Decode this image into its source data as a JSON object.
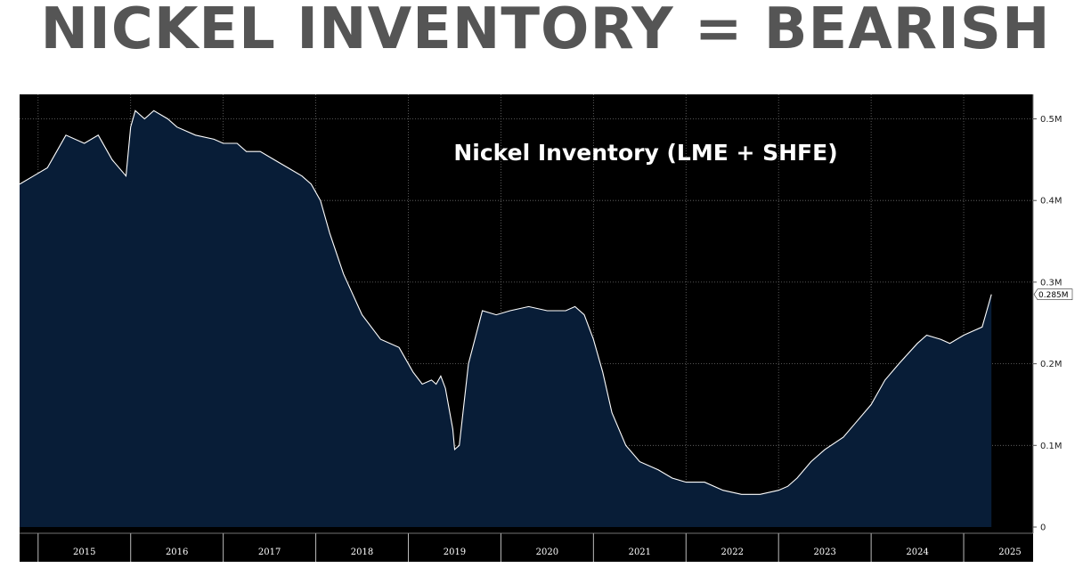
{
  "headline": "NICKEL INVENTORY = BEARISH",
  "colors": {
    "background": "#000000",
    "area_fill": "#081d37",
    "line": "#ffffff",
    "headline": "#555555"
  },
  "chart_data": {
    "type": "area",
    "title": "Nickel Inventory (LME + SHFE)",
    "xlabel": "",
    "ylabel": "",
    "x_range": [
      2014.8,
      2025.75
    ],
    "ylim": [
      0,
      0.53
    ],
    "y_unit": "M",
    "y_ticks": [
      0,
      0.1,
      0.2,
      0.3,
      0.4,
      0.5
    ],
    "y_tick_labels": [
      "0",
      "0.1M",
      "0.2M",
      "0.3M",
      "0.4M",
      "0.5M"
    ],
    "x_tick_labels": [
      "2015",
      "2016",
      "2017",
      "2018",
      "2019",
      "2020",
      "2021",
      "2022",
      "2023",
      "2024",
      "2025"
    ],
    "grid": true,
    "last_value_label": "0.285M",
    "series": [
      {
        "x": [
          2014.8,
          2014.95,
          2015.1,
          2015.2,
          2015.3,
          2015.5,
          2015.65,
          2015.8,
          2015.95,
          2016.0,
          2016.05,
          2016.15,
          2016.25,
          2016.4,
          2016.5,
          2016.7,
          2016.9,
          2017.0,
          2017.15,
          2017.25,
          2017.4,
          2017.55,
          2017.7,
          2017.85,
          2017.95,
          2018.05,
          2018.15,
          2018.3,
          2018.5,
          2018.7,
          2018.9,
          2019.05,
          2019.15,
          2019.25,
          2019.3,
          2019.35,
          2019.4,
          2019.48,
          2019.5,
          2019.55,
          2019.65,
          2019.8,
          2019.95,
          2020.1,
          2020.3,
          2020.5,
          2020.7,
          2020.8,
          2020.9,
          2021.0,
          2021.1,
          2021.2,
          2021.35,
          2021.5,
          2021.7,
          2021.85,
          2022.0,
          2022.2,
          2022.4,
          2022.6,
          2022.8,
          2023.0,
          2023.1,
          2023.2,
          2023.35,
          2023.5,
          2023.7,
          2023.85,
          2024.0,
          2024.15,
          2024.3,
          2024.5,
          2024.6,
          2024.75,
          2024.85,
          2025.0,
          2025.1,
          2025.2,
          2025.25,
          2025.3
        ],
        "y": [
          0.42,
          0.43,
          0.44,
          0.46,
          0.48,
          0.47,
          0.48,
          0.45,
          0.43,
          0.49,
          0.51,
          0.5,
          0.51,
          0.5,
          0.49,
          0.48,
          0.475,
          0.47,
          0.47,
          0.46,
          0.46,
          0.45,
          0.44,
          0.43,
          0.42,
          0.4,
          0.36,
          0.31,
          0.26,
          0.23,
          0.22,
          0.19,
          0.175,
          0.18,
          0.175,
          0.185,
          0.17,
          0.12,
          0.095,
          0.1,
          0.2,
          0.265,
          0.26,
          0.265,
          0.27,
          0.265,
          0.265,
          0.27,
          0.26,
          0.23,
          0.19,
          0.14,
          0.1,
          0.08,
          0.07,
          0.06,
          0.055,
          0.055,
          0.045,
          0.04,
          0.04,
          0.045,
          0.05,
          0.06,
          0.08,
          0.095,
          0.11,
          0.13,
          0.15,
          0.18,
          0.2,
          0.225,
          0.235,
          0.23,
          0.225,
          0.235,
          0.24,
          0.245,
          0.265,
          0.285
        ]
      }
    ]
  }
}
